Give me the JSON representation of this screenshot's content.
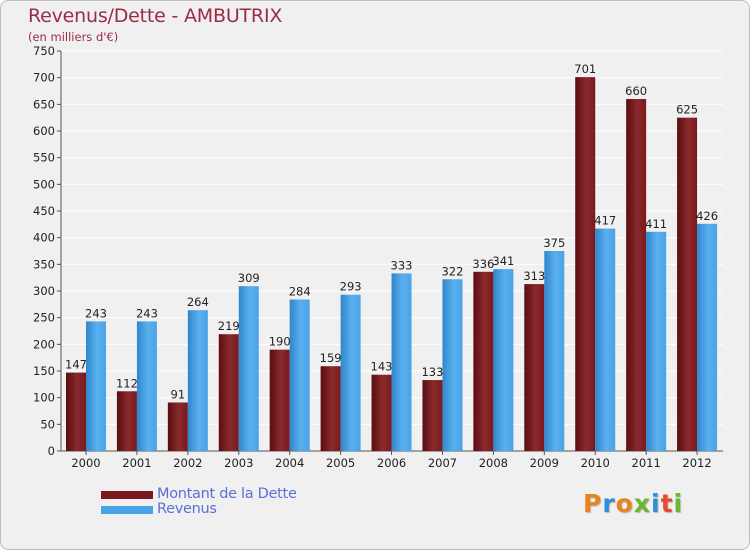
{
  "title": "Revenus/Dette - AMBUTRIX",
  "subtitle": "(en milliers d'€)",
  "legend": {
    "debt_label": "Montant de la Dette",
    "revenue_label": "Revenus"
  },
  "logo": "Proxiti",
  "colors": {
    "debt": "#7a1a1d",
    "revenue": "#4aa3e6",
    "title": "#9b2c44",
    "legend_text": "#5b6fd6"
  },
  "chart_data": {
    "type": "bar",
    "title": "Revenus/Dette - AMBUTRIX",
    "subtitle": "(en milliers d'€)",
    "categories": [
      "2000",
      "2001",
      "2002",
      "2003",
      "2004",
      "2005",
      "2006",
      "2007",
      "2008",
      "2009",
      "2010",
      "2011",
      "2012"
    ],
    "series": [
      {
        "name": "Montant de la Dette",
        "values": [
          147,
          112,
          91,
          219,
          190,
          159,
          143,
          133,
          336,
          313,
          701,
          660,
          625
        ]
      },
      {
        "name": "Revenus",
        "values": [
          243,
          243,
          264,
          309,
          284,
          293,
          333,
          322,
          341,
          375,
          417,
          411,
          426
        ]
      }
    ],
    "ylim": [
      0,
      750
    ],
    "yticks": [
      0,
      50,
      100,
      150,
      200,
      250,
      300,
      350,
      400,
      450,
      500,
      550,
      600,
      650,
      700,
      750
    ],
    "grid": true,
    "legend_position": "bottom-left"
  }
}
